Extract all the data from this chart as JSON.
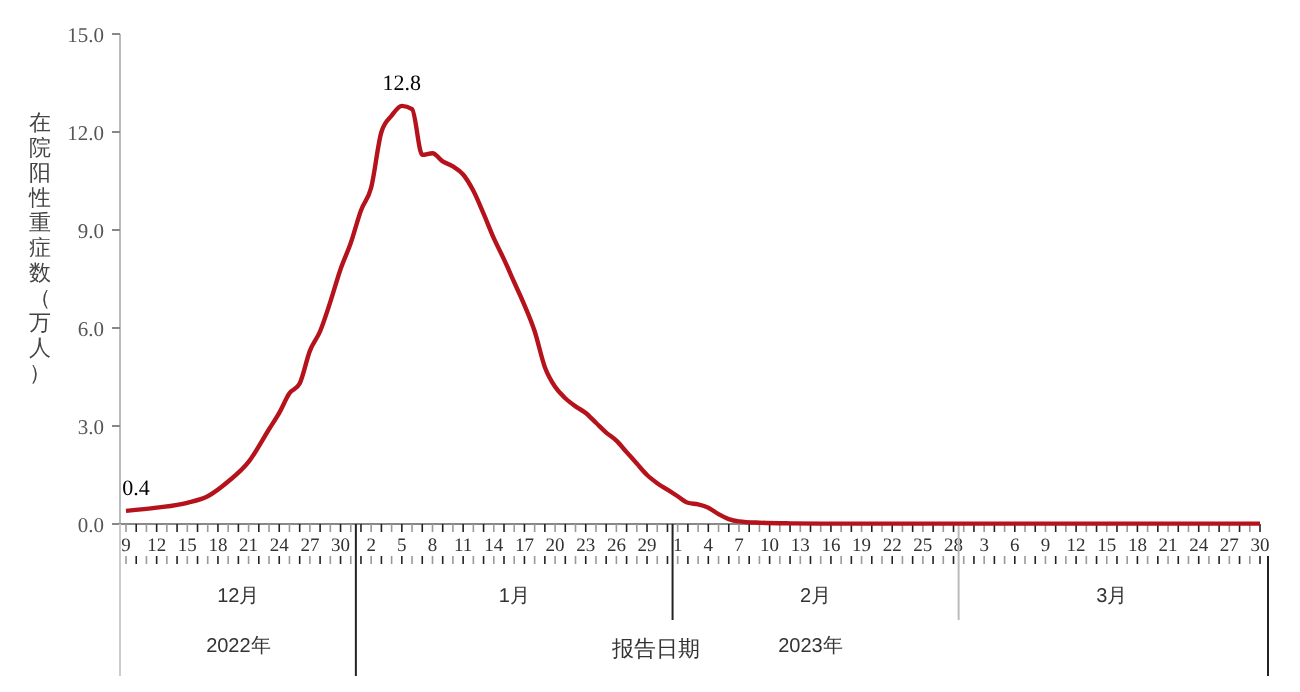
{
  "chart_data": {
    "type": "line",
    "ylabel": "在院阳性重症数（万人）",
    "xlabel": "报告日期",
    "x": [
      "2022-12-09",
      "2022-12-12",
      "2022-12-15",
      "2022-12-17",
      "2022-12-19",
      "2022-12-21",
      "2022-12-23",
      "2022-12-24",
      "2022-12-25",
      "2022-12-26",
      "2022-12-27",
      "2022-12-28",
      "2022-12-29",
      "2022-12-30",
      "2022-12-31",
      "2023-01-01",
      "2023-01-02",
      "2023-01-03",
      "2023-01-04",
      "2023-01-05",
      "2023-01-06",
      "2023-01-07",
      "2023-01-08",
      "2023-01-09",
      "2023-01-10",
      "2023-01-11",
      "2023-01-12",
      "2023-01-13",
      "2023-01-14",
      "2023-01-15",
      "2023-01-16",
      "2023-01-17",
      "2023-01-18",
      "2023-01-19",
      "2023-01-20",
      "2023-01-21",
      "2023-01-22",
      "2023-01-23",
      "2023-01-24",
      "2023-01-25",
      "2023-01-26",
      "2023-01-27",
      "2023-01-28",
      "2023-01-29",
      "2023-01-30",
      "2023-01-31",
      "2023-02-01",
      "2023-02-02",
      "2023-02-03",
      "2023-02-04",
      "2023-02-05",
      "2023-02-06",
      "2023-02-07",
      "2023-02-09",
      "2023-02-12",
      "2023-02-17",
      "2023-02-27",
      "2023-03-09",
      "2023-03-19",
      "2023-03-30"
    ],
    "series": [
      {
        "color": "#b5121b",
        "values": [
          0.4,
          0.5,
          0.65,
          0.85,
          1.3,
          1.9,
          2.9,
          3.4,
          4.0,
          4.3,
          5.3,
          5.9,
          6.8,
          7.8,
          8.6,
          9.6,
          10.3,
          12.0,
          12.5,
          12.8,
          12.7,
          11.3,
          11.35,
          11.1,
          10.95,
          10.7,
          10.2,
          9.5,
          8.75,
          8.1,
          7.4,
          6.7,
          5.9,
          4.8,
          4.2,
          3.85,
          3.6,
          3.4,
          3.1,
          2.8,
          2.55,
          2.2,
          1.85,
          1.5,
          1.25,
          1.05,
          0.85,
          0.65,
          0.6,
          0.5,
          0.3,
          0.15,
          0.08,
          0.04,
          0.02,
          0.01,
          0.01,
          0.01,
          0.01,
          0.01
        ],
        "value_labels": [
          "0.4",
          null,
          null,
          null,
          null,
          null,
          null,
          null,
          null,
          null,
          null,
          null,
          null,
          null,
          null,
          null,
          null,
          null,
          null,
          "12.8",
          null,
          null,
          null,
          null,
          null,
          null,
          null,
          null,
          null,
          null,
          null,
          null,
          null,
          null,
          null,
          null,
          null,
          null,
          null,
          null,
          null,
          null,
          null,
          null,
          null,
          null,
          null,
          null,
          null,
          null,
          null,
          null,
          null,
          null,
          null,
          null,
          null,
          null,
          null,
          null
        ]
      }
    ],
    "xlim": [
      "2022-12-09",
      "2023-03-30"
    ],
    "xticks": [
      {
        "value": "2022-12-09",
        "label": "9"
      },
      {
        "value": "2022-12-12",
        "label": "12"
      },
      {
        "value": "2022-12-15",
        "label": "15"
      },
      {
        "value": "2022-12-18",
        "label": "18"
      },
      {
        "value": "2022-12-21",
        "label": "21"
      },
      {
        "value": "2022-12-24",
        "label": "24"
      },
      {
        "value": "2022-12-27",
        "label": "27"
      },
      {
        "value": "2022-12-30",
        "label": "30"
      },
      {
        "value": "2023-01-02",
        "label": "2"
      },
      {
        "value": "2023-01-05",
        "label": "5"
      },
      {
        "value": "2023-01-08",
        "label": "8"
      },
      {
        "value": "2023-01-11",
        "label": "11"
      },
      {
        "value": "2023-01-14",
        "label": "14"
      },
      {
        "value": "2023-01-17",
        "label": "17"
      },
      {
        "value": "2023-01-20",
        "label": "20"
      },
      {
        "value": "2023-01-23",
        "label": "23"
      },
      {
        "value": "2023-01-26",
        "label": "26"
      },
      {
        "value": "2023-01-29",
        "label": "29"
      },
      {
        "value": "2023-02-01",
        "label": "1"
      },
      {
        "value": "2023-02-04",
        "label": "4"
      },
      {
        "value": "2023-02-07",
        "label": "7"
      },
      {
        "value": "2023-02-10",
        "label": "10"
      },
      {
        "value": "2023-02-13",
        "label": "13"
      },
      {
        "value": "2023-02-16",
        "label": "16"
      },
      {
        "value": "2023-02-19",
        "label": "19"
      },
      {
        "value": "2023-02-22",
        "label": "22"
      },
      {
        "value": "2023-02-25",
        "label": "25"
      },
      {
        "value": "2023-02-28",
        "label": "28"
      },
      {
        "value": "2023-03-03",
        "label": "3"
      },
      {
        "value": "2023-03-06",
        "label": "6"
      },
      {
        "value": "2023-03-09",
        "label": "9"
      },
      {
        "value": "2023-03-12",
        "label": "12"
      },
      {
        "value": "2023-03-15",
        "label": "15"
      },
      {
        "value": "2023-03-18",
        "label": "18"
      },
      {
        "value": "2023-03-21",
        "label": "21"
      },
      {
        "value": "2023-03-24",
        "label": "24"
      },
      {
        "value": "2023-03-27",
        "label": "27"
      },
      {
        "value": "2023-03-30",
        "label": "30"
      }
    ],
    "ylim": [
      0,
      15
    ],
    "yticks": [
      {
        "value": 0,
        "label": "0.0"
      },
      {
        "value": 3,
        "label": "3.0"
      },
      {
        "value": 6,
        "label": "6.0"
      },
      {
        "value": 9,
        "label": "9.0"
      },
      {
        "value": 12,
        "label": "12.0"
      },
      {
        "value": 15,
        "label": "15.0"
      }
    ],
    "annotations": [
      "12月",
      "1月",
      "2月",
      "3月",
      "2022年",
      "2023年"
    ],
    "grid": false,
    "marker": "none",
    "line_style": "solid"
  }
}
